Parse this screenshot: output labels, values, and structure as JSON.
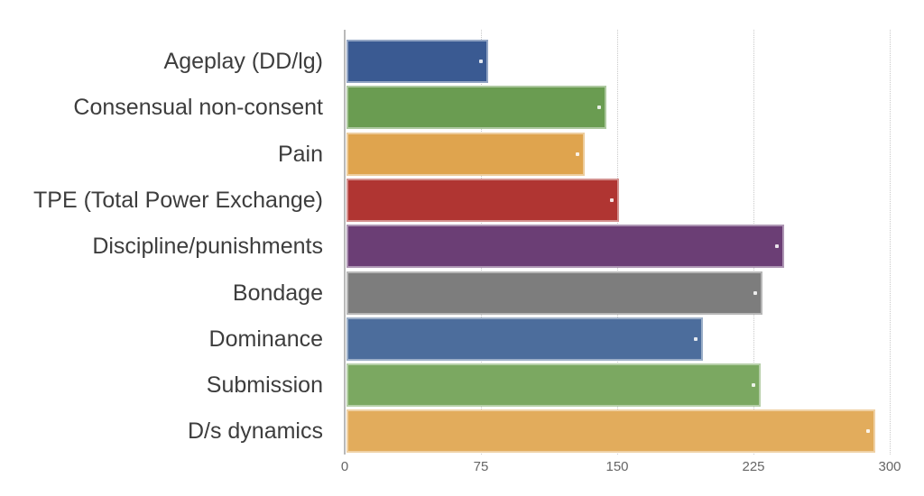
{
  "chart_data": {
    "type": "bar",
    "orientation": "horizontal",
    "title": "",
    "categories": [
      "Ageplay (DD/lg)",
      "Consensual non-consent",
      "Pain",
      "TPE (Total Power Exchange)",
      "Discipline/punishments",
      "Bondage",
      "Dominance",
      "Submission",
      "D/s dynamics"
    ],
    "values": [
      78,
      143,
      131,
      150,
      241,
      229,
      196,
      228,
      291
    ],
    "bar_colors": [
      "#3a5a92",
      "#6a9c51",
      "#dfa44e",
      "#b03532",
      "#6b3e75",
      "#7d7d7d",
      "#4c6d9c",
      "#7ba861",
      "#e2ac5c"
    ],
    "xlabel": "",
    "ylabel": "",
    "xlim": [
      0,
      300
    ],
    "x_ticks": [
      0,
      75,
      150,
      225,
      300
    ],
    "grid": "vertical-dotted",
    "legend": "none",
    "background": "#ffffff",
    "axis_line_color": "#b9b9b9",
    "grid_color": "#c9c9c9",
    "category_label_color": "#3d3d3d",
    "tick_label_color": "#666666"
  }
}
